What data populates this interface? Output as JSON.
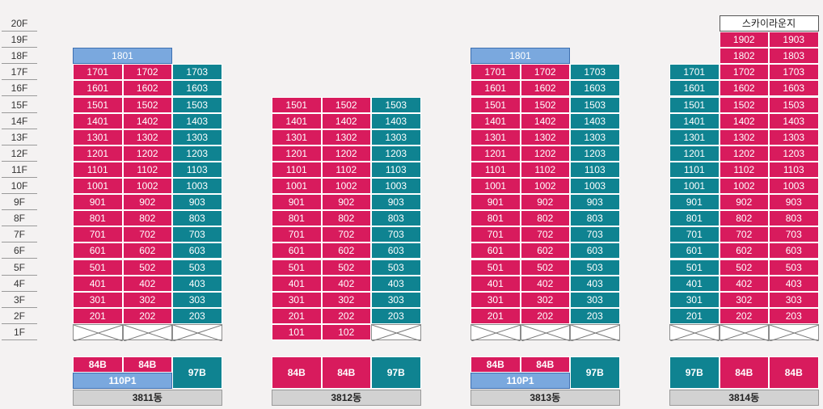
{
  "floors": [
    "20F",
    "19F",
    "18F",
    "17F",
    "16F",
    "15F",
    "14F",
    "13F",
    "12F",
    "11F",
    "10F",
    "9F",
    "8F",
    "7F",
    "6F",
    "5F",
    "4F",
    "3F",
    "2F",
    "1F"
  ],
  "colors": {
    "pink": "#d81b5d",
    "teal": "#0f8391",
    "blue": "#7aa8de"
  },
  "buildings": [
    {
      "name": "3811동",
      "top_unit": "1801",
      "columns": [
        {
          "suffix": "01",
          "color": "pink",
          "top_floor": 17,
          "bottom_floor": 2
        },
        {
          "suffix": "02",
          "color": "pink",
          "top_floor": 17,
          "bottom_floor": 2
        },
        {
          "suffix": "03",
          "color": "teal",
          "top_floor": 17,
          "bottom_floor": 2
        }
      ],
      "pilotis": [
        1,
        2,
        3
      ],
      "types": {
        "row1": [
          "84B",
          "84B"
        ],
        "row2": "110P1",
        "right": "97B"
      }
    },
    {
      "name": "3812동",
      "columns": [
        {
          "suffix": "01",
          "color": "pink",
          "top_floor": 15,
          "bottom_floor": 1
        },
        {
          "suffix": "02",
          "color": "pink",
          "top_floor": 15,
          "bottom_floor": 1
        },
        {
          "suffix": "03",
          "color": "teal",
          "top_floor": 15,
          "bottom_floor": 2
        }
      ],
      "pilotis": [
        3
      ],
      "types": {
        "cells": [
          {
            "label": "84B",
            "color": "pink"
          },
          {
            "label": "84B",
            "color": "pink"
          },
          {
            "label": "97B",
            "color": "teal"
          }
        ]
      }
    },
    {
      "name": "3813동",
      "top_unit": "1801",
      "columns": [
        {
          "suffix": "01",
          "color": "pink",
          "top_floor": 17,
          "bottom_floor": 2
        },
        {
          "suffix": "02",
          "color": "pink",
          "top_floor": 17,
          "bottom_floor": 2
        },
        {
          "suffix": "03",
          "color": "teal",
          "top_floor": 17,
          "bottom_floor": 2
        }
      ],
      "pilotis": [
        1,
        2,
        3
      ],
      "types": {
        "row1": [
          "84B",
          "84B"
        ],
        "row2": "110P1",
        "right": "97B"
      }
    },
    {
      "name": "3814동",
      "sky_lounge": "스카이라운지",
      "columns": [
        {
          "suffix": "01",
          "color": "teal",
          "top_floor": 17,
          "bottom_floor": 2
        },
        {
          "suffix": "02",
          "color": "pink",
          "top_floor": 19,
          "bottom_floor": 2
        },
        {
          "suffix": "03",
          "color": "pink",
          "top_floor": 19,
          "bottom_floor": 2
        }
      ],
      "pilotis": [
        1,
        2,
        3
      ],
      "types": {
        "cells": [
          {
            "label": "97B",
            "color": "teal"
          },
          {
            "label": "84B",
            "color": "pink"
          },
          {
            "label": "84B",
            "color": "pink"
          }
        ]
      }
    }
  ]
}
